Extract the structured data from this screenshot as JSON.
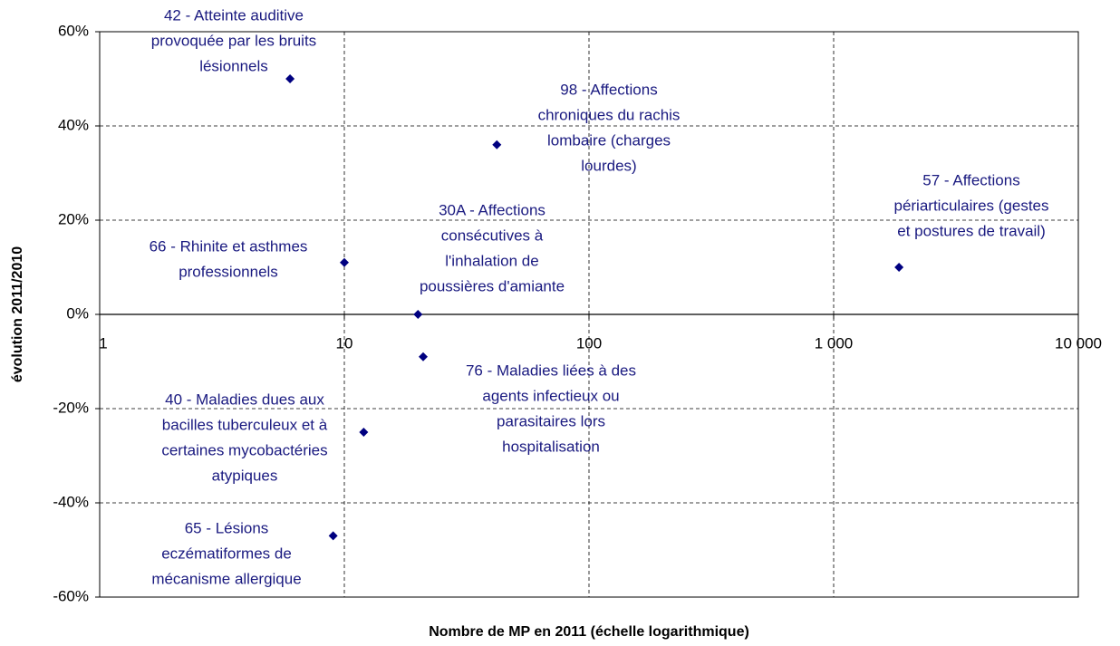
{
  "chart_data": {
    "type": "scatter",
    "xlabel": "Nombre de MP en 2011 (échelle logarithmique)",
    "ylabel": "évolution 2011/2010",
    "xscale": "log",
    "grid": true,
    "xlim": [
      1,
      10000
    ],
    "xticks": [
      1,
      10,
      100,
      {
        "value": 1000,
        "label": "1 000"
      },
      {
        "value": 10000,
        "label": "10 000"
      }
    ],
    "ylim": [
      -60,
      60
    ],
    "yticks": [
      {
        "value": -60,
        "label": "-60%"
      },
      {
        "value": -40,
        "label": "-40%"
      },
      {
        "value": -20,
        "label": "-20%"
      },
      {
        "value": 0,
        "label": "0%"
      },
      {
        "value": 20,
        "label": "20%"
      },
      {
        "value": 40,
        "label": "40%"
      },
      {
        "value": 60,
        "label": "60%"
      }
    ],
    "series": [
      {
        "color": "#000080",
        "x": [
          6,
          42,
          1850,
          10,
          20,
          21,
          12,
          9
        ],
        "values": [
          50,
          36,
          10,
          11,
          0,
          -9,
          -25,
          -47
        ],
        "point_labels": [
          [
            "42 - Atteinte auditive",
            "provoquée par les bruits",
            "lésionnels"
          ],
          [
            "98 - Affections",
            "chroniques du rachis",
            "lombaire (charges",
            "lourdes)"
          ],
          [
            "57 - Affections",
            "périarticulaires (gestes",
            "et postures de travail)"
          ],
          [
            "66 - Rhinite et asthmes",
            "professionnels"
          ],
          [
            "30A - Affections",
            "consécutives à",
            "l'inhalation de",
            "poussières d'amiante"
          ],
          [
            "76 - Maladies liées à des",
            "agents infectieux ou",
            "parasitaires lors",
            "hospitalisation"
          ],
          [
            "40 - Maladies dues aux",
            "bacilles tuberculeux et à",
            "certaines mycobactéries",
            "atypiques"
          ],
          [
            "65 - Lésions",
            "eczématiformes de",
            "mécanisme allergique"
          ]
        ]
      }
    ]
  }
}
